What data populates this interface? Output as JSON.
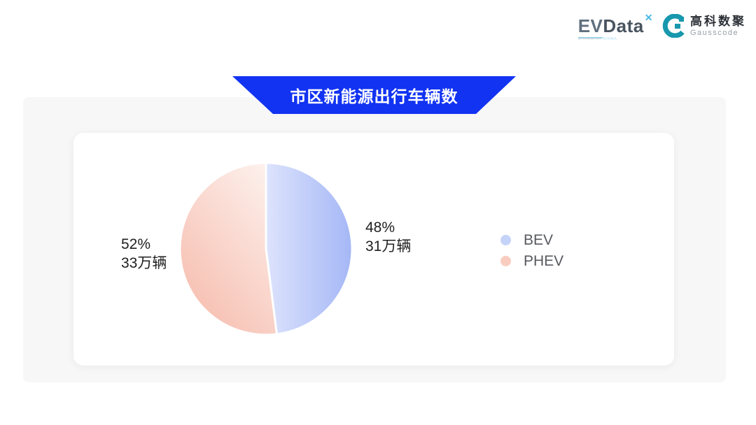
{
  "logos": {
    "evdata": {
      "part1": "EV",
      "part2": "Data",
      "mark": "✕",
      "sub1": "SHANGHAI",
      "sub2": "CHINA"
    },
    "gausscode": {
      "cn": "高科数聚",
      "en": "Gausscode",
      "mark_color": "#1898ad"
    }
  },
  "banner": {
    "color": "#1233f2"
  },
  "chart_data": {
    "type": "pie",
    "title": "市区新能源出行车辆数",
    "unit": "万辆",
    "start_angle": "top",
    "direction": "clockwise",
    "legend_position": "right",
    "slices": [
      {
        "name": "BEV",
        "percent": 48,
        "percent_label": "48%",
        "value": 31,
        "value_label": "31万辆",
        "gradient_light": "#dce3fc",
        "gradient_deep": "#a5b7f6",
        "legend_color": "#c5d3f9",
        "label_side": "right"
      },
      {
        "name": "PHEV",
        "percent": 52,
        "percent_label": "52%",
        "value": 33,
        "value_label": "33万辆",
        "gradient_light": "#fdf0ec",
        "gradient_deep": "#f6bbac",
        "legend_color": "#f8cdc0",
        "label_side": "left"
      }
    ]
  }
}
